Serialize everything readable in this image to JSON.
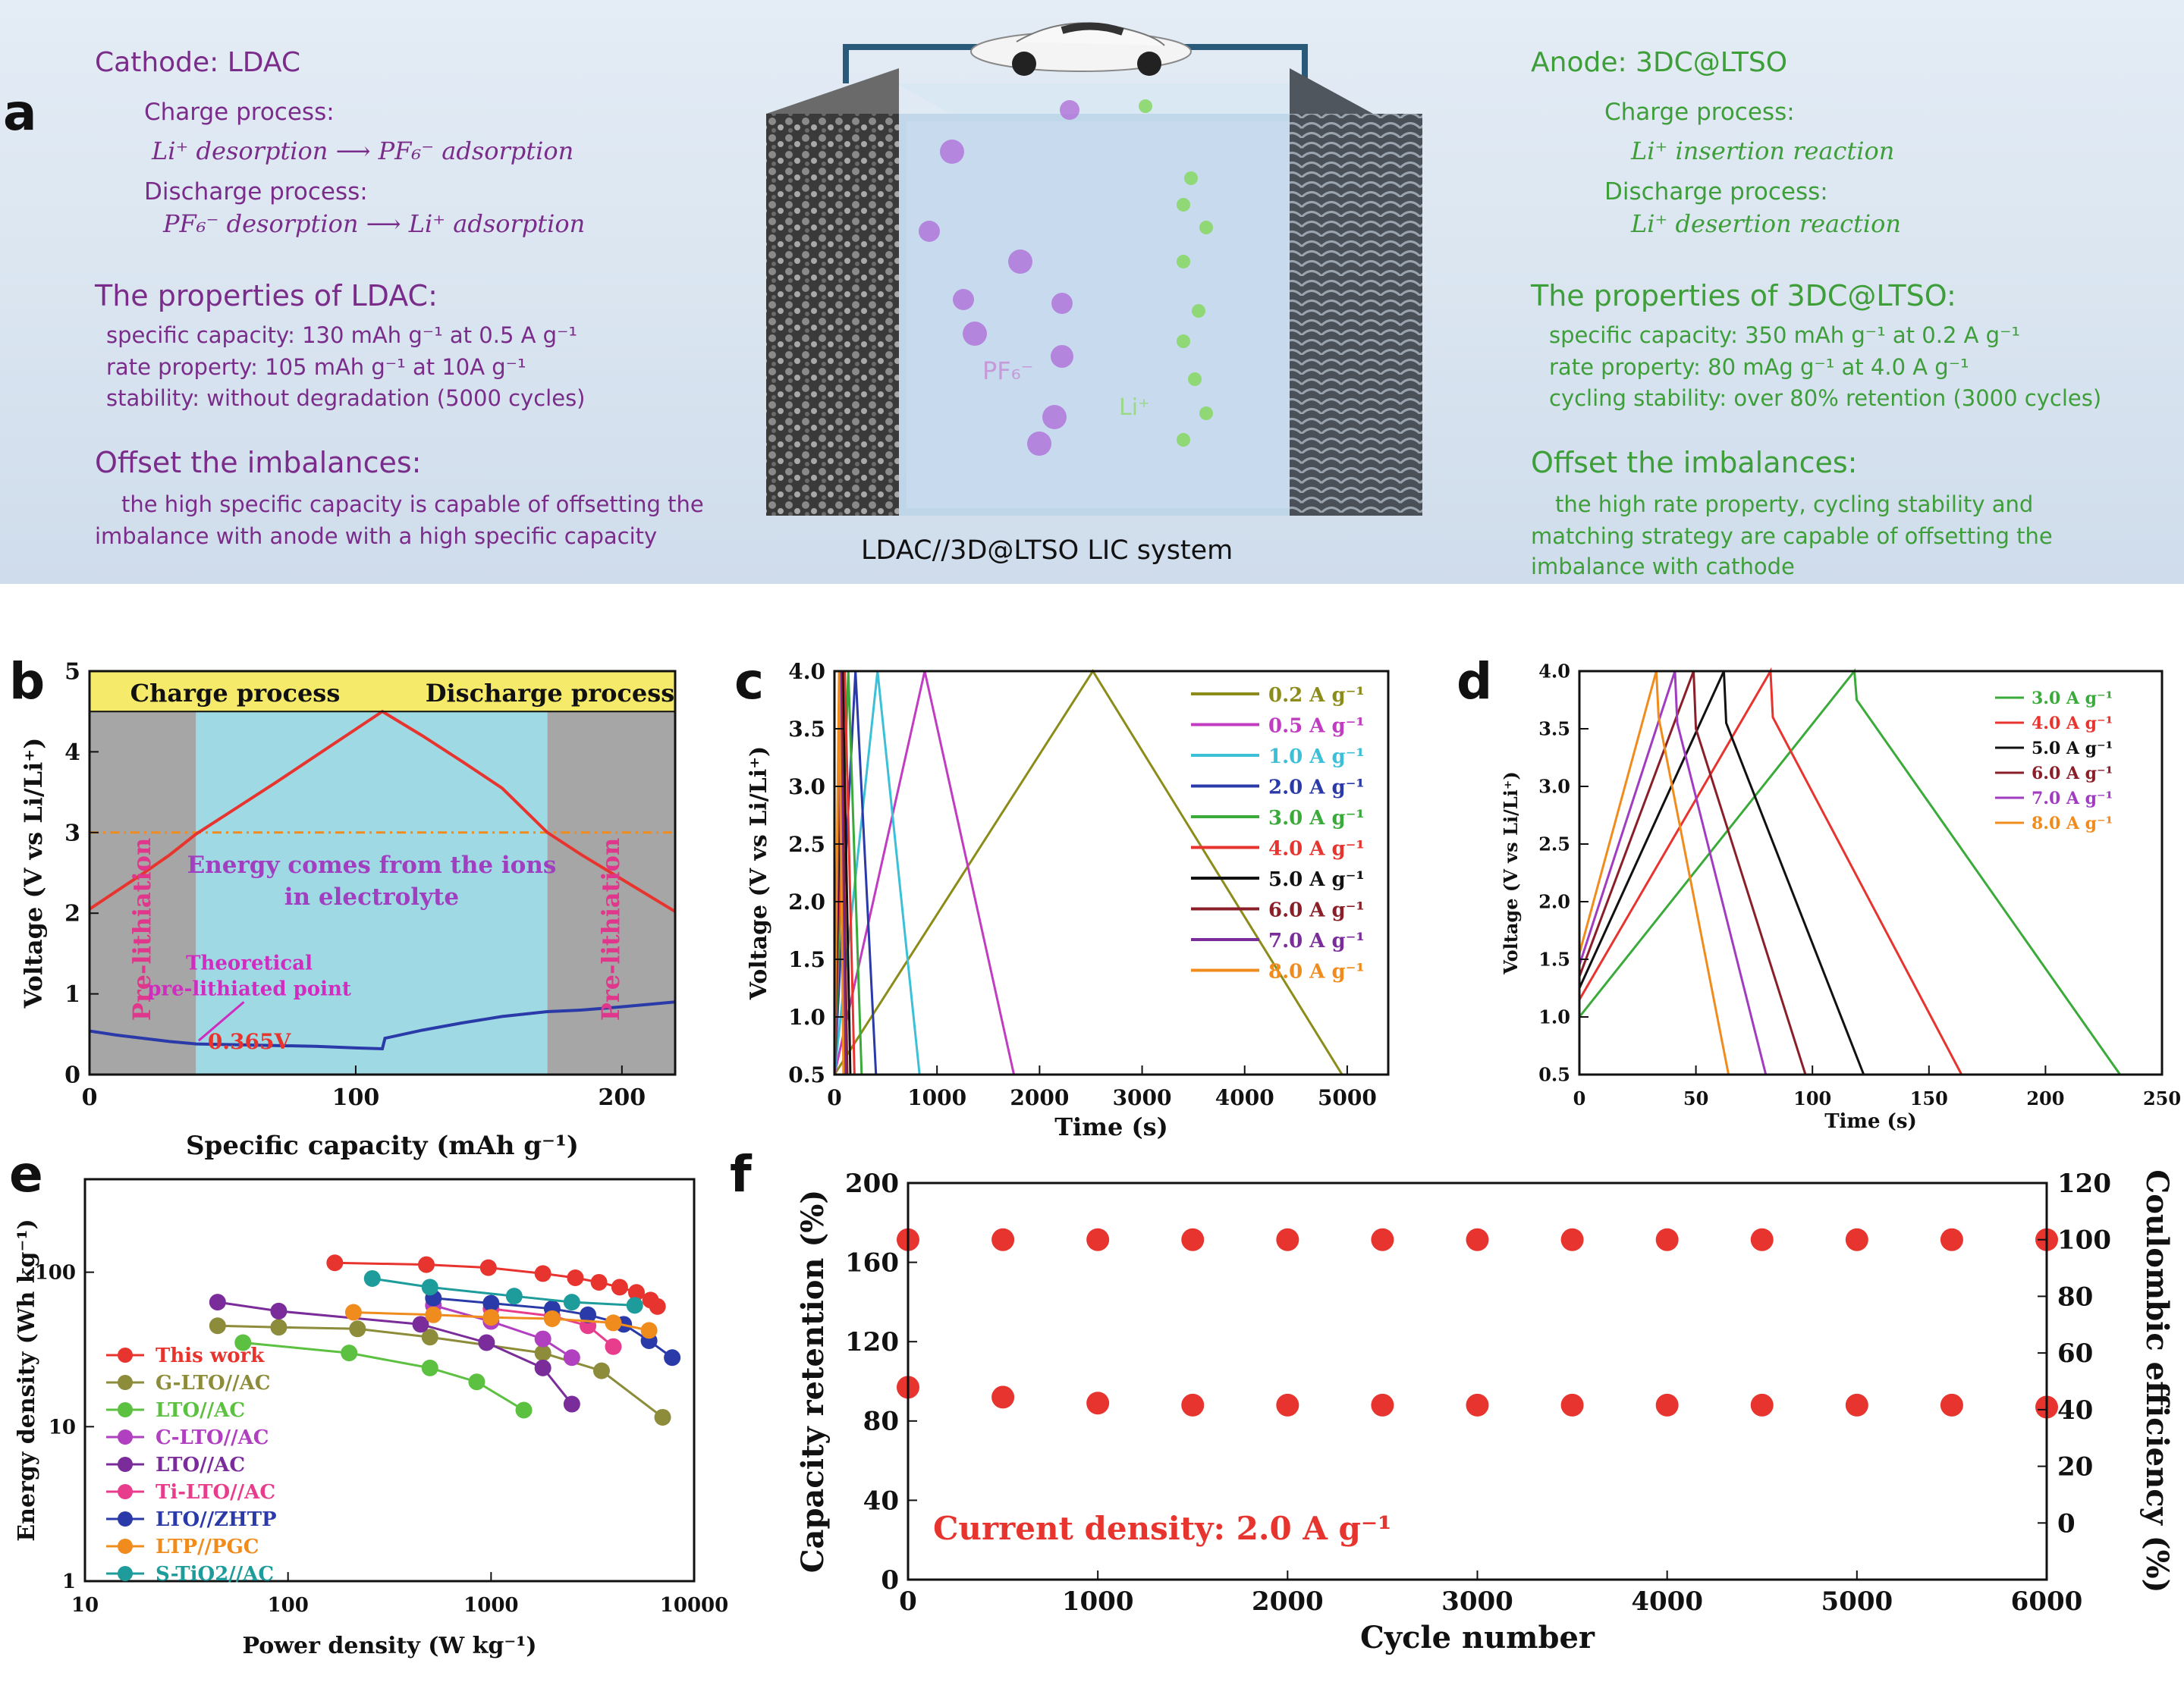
{
  "panel_labels": [
    "a",
    "b",
    "c",
    "d",
    "e",
    "f"
  ],
  "panel_a": {
    "cathode_title": "Cathode: LDAC",
    "cathode_charge": "Charge process:",
    "cathode_charge_reaction": "Li⁺ desorption ⟶ PF₆⁻ adsorption",
    "cathode_discharge": "Discharge process:",
    "cathode_discharge_reaction": "PF₆⁻ desorption ⟶ Li⁺ adsorption",
    "cathode_props_title": "The properties of LDAC:",
    "cathode_props": [
      "specific capacity: 130 mAh g⁻¹ at 0.5 A g⁻¹",
      "rate property: 105 mAh g⁻¹ at 10A g⁻¹",
      "stability: without degradation (5000 cycles)"
    ],
    "cathode_offset_title": "Offset the imbalances:",
    "cathode_offset": [
      "the high specific capacity is capable of offsetting the",
      "imbalance with anode with a high specific capacity"
    ],
    "anode_title": "Anode: 3DC@LTSO",
    "anode_charge": "Charge process:",
    "anode_charge_reaction": "Li⁺ insertion reaction",
    "anode_discharge": "Discharge process:",
    "anode_discharge_reaction": "Li⁺ desertion reaction",
    "anode_props_title": "The properties of 3DC@LTSO:",
    "anode_props": [
      "specific capacity: 350 mAh g⁻¹ at 0.2 A g⁻¹",
      "rate property: 80 mAg g⁻¹ at 4.0 A g⁻¹",
      "cycling stability: over 80% retention (3000 cycles)"
    ],
    "anode_offset_title": "Offset the imbalances:",
    "anode_offset": [
      "the high rate property, cycling stability and",
      "matching strategy are capable of offsetting the",
      "imbalance with cathode"
    ],
    "system_caption": "LDAC//3D@LTSO  LIC system",
    "ion_label_pf6": "PF₆⁻",
    "ion_label_li": "Li⁺",
    "colors": {
      "purple": "#7a2c8a",
      "green": "#3e9e3a"
    }
  },
  "chart_data": [
    {
      "panel": "b",
      "type": "line",
      "xlabel": "Specific capacity (mAh g⁻¹)",
      "ylabel": "Voltage (V vs Li/Li⁺)",
      "xlim": [
        0,
        220
      ],
      "ylim": [
        0,
        5
      ],
      "xticks": [
        0,
        100,
        200
      ],
      "yticks": [
        0,
        1,
        2,
        3,
        4,
        5
      ],
      "header_left": "Charge process",
      "header_right": "Discharge process",
      "region_labels": [
        "Pre-lithiation",
        "Pre-lithiation"
      ],
      "center_text": [
        "Energy comes from the ions",
        "in electrolyte"
      ],
      "annotation": [
        "Theoretical",
        "pre-lithiated point"
      ],
      "annotation_value": "0.365V",
      "regions": {
        "left_gray": [
          0,
          40
        ],
        "cyan": [
          40,
          172
        ],
        "right_gray": [
          172,
          220
        ]
      },
      "reference_line_y": 3.0,
      "series": [
        {
          "role": "cathode",
          "color": "#e8342e",
          "x": [
            0,
            10,
            20,
            30,
            40,
            55,
            70,
            85,
            100,
            110,
            125,
            140,
            155,
            172,
            185,
            200,
            220
          ],
          "y": [
            2.05,
            2.27,
            2.49,
            2.72,
            2.98,
            3.3,
            3.62,
            3.95,
            4.28,
            4.5,
            4.2,
            3.88,
            3.55,
            3.0,
            2.72,
            2.42,
            2.02
          ]
        },
        {
          "role": "anode",
          "color": "#2a3aa8",
          "x": [
            0,
            10,
            20,
            30,
            40,
            55,
            70,
            85,
            100,
            110,
            111,
            125,
            140,
            155,
            172,
            185,
            200,
            220
          ],
          "y": [
            0.54,
            0.49,
            0.45,
            0.41,
            0.38,
            0.37,
            0.36,
            0.35,
            0.33,
            0.32,
            0.45,
            0.55,
            0.64,
            0.72,
            0.78,
            0.8,
            0.84,
            0.9
          ]
        }
      ]
    },
    {
      "panel": "c",
      "type": "line",
      "xlabel": "Time (s)",
      "ylabel": "Voltage (V vs Li/Li⁺)",
      "xlim": [
        0,
        5400
      ],
      "ylim": [
        0.5,
        4.0
      ],
      "xticks": [
        0,
        1000,
        2000,
        3000,
        4000,
        5000
      ],
      "yticks": [
        0.5,
        1.0,
        1.5,
        2.0,
        2.5,
        3.0,
        3.5,
        4.0
      ],
      "series": [
        {
          "name": "0.2 A g⁻¹",
          "color": "#8c8c1a",
          "x": [
            0,
            2520,
            4950
          ],
          "y": [
            0.5,
            4.0,
            0.5
          ]
        },
        {
          "name": "0.5 A g⁻¹",
          "color": "#c03cc0",
          "x": [
            0,
            880,
            1750
          ],
          "y": [
            0.5,
            4.0,
            0.5
          ]
        },
        {
          "name": "1.0 A g⁻¹",
          "color": "#3cc0d8",
          "x": [
            0,
            420,
            830
          ],
          "y": [
            0.5,
            4.0,
            0.5
          ]
        },
        {
          "name": "2.0 A g⁻¹",
          "color": "#2a3aa8",
          "x": [
            0,
            205,
            405
          ],
          "y": [
            0.5,
            4.0,
            0.5
          ]
        },
        {
          "name": "3.0 A g⁻¹",
          "color": "#3aaa3a",
          "x": [
            0,
            135,
            265
          ],
          "y": [
            0.5,
            4.0,
            0.5
          ]
        },
        {
          "name": "4.0 A g⁻¹",
          "color": "#e8342e",
          "x": [
            0,
            100,
            195
          ],
          "y": [
            0.5,
            4.0,
            0.5
          ]
        },
        {
          "name": "5.0 A g⁻¹",
          "color": "#111111",
          "x": [
            0,
            80,
            155
          ],
          "y": [
            0.5,
            4.0,
            0.5
          ]
        },
        {
          "name": "6.0 A g⁻¹",
          "color": "#8a1f2a",
          "x": [
            0,
            65,
            125
          ],
          "y": [
            0.5,
            4.0,
            0.5
          ]
        },
        {
          "name": "7.0 A g⁻¹",
          "color": "#7a2c9a",
          "x": [
            0,
            55,
            105
          ],
          "y": [
            0.5,
            4.0,
            0.5
          ]
        },
        {
          "name": "8.0 A g⁻¹",
          "color": "#f08c1e",
          "x": [
            0,
            45,
            88
          ],
          "y": [
            0.5,
            4.0,
            0.5
          ]
        }
      ]
    },
    {
      "panel": "d",
      "type": "line",
      "xlabel": "Time (s)",
      "ylabel": "Voltage (V vs Li/Li⁺)",
      "xlim": [
        0,
        250
      ],
      "ylim": [
        0.5,
        4.0
      ],
      "xticks": [
        0,
        50,
        100,
        150,
        200,
        250
      ],
      "yticks": [
        0.5,
        1.0,
        1.5,
        2.0,
        2.5,
        3.0,
        3.5,
        4.0
      ],
      "series": [
        {
          "name": "3.0 A g⁻¹",
          "color": "#3aaa3a",
          "x": [
            0,
            118,
            119,
            232
          ],
          "y": [
            1.0,
            4.0,
            3.75,
            0.5
          ]
        },
        {
          "name": "4.0 A g⁻¹",
          "color": "#e8342e",
          "x": [
            0,
            82,
            83,
            164
          ],
          "y": [
            1.15,
            4.0,
            3.6,
            0.5
          ]
        },
        {
          "name": "5.0 A g⁻¹",
          "color": "#111111",
          "x": [
            0,
            62,
            63,
            122
          ],
          "y": [
            1.25,
            4.0,
            3.55,
            0.5
          ]
        },
        {
          "name": "6.0 A g⁻¹",
          "color": "#8a1f2a",
          "x": [
            0,
            49,
            50,
            97
          ],
          "y": [
            1.35,
            4.0,
            3.5,
            0.5
          ]
        },
        {
          "name": "7.0 A g⁻¹",
          "color": "#a03cc0",
          "x": [
            0,
            41,
            42,
            80
          ],
          "y": [
            1.45,
            4.0,
            3.55,
            0.5
          ]
        },
        {
          "name": "8.0 A g⁻¹",
          "color": "#f08c1e",
          "x": [
            0,
            33,
            34,
            64
          ],
          "y": [
            1.55,
            4.0,
            3.6,
            0.5
          ]
        }
      ]
    },
    {
      "panel": "e",
      "type": "scatter",
      "xlabel": "Power density (W kg⁻¹)",
      "ylabel": "Energy density (Wh kg⁻¹)",
      "xscale": "log",
      "yscale": "log",
      "xlim": [
        10,
        10000
      ],
      "ylim": [
        1,
        400
      ],
      "xticks": [
        10,
        100,
        1000,
        10000
      ],
      "yticks": [
        1,
        10,
        100
      ],
      "series": [
        {
          "name": "This work",
          "color": "#e8342e",
          "x": [
            170,
            480,
            970,
            1800,
            2600,
            3400,
            4300,
            5200,
            6100,
            6600
          ],
          "y": [
            115,
            112,
            107,
            98,
            92,
            86,
            80,
            74,
            66,
            60
          ]
        },
        {
          "name": "G-LTO//AC",
          "color": "#8c8c3a",
          "x": [
            45,
            90,
            220,
            500,
            1800,
            3500,
            7000
          ],
          "y": [
            45,
            44,
            43,
            38,
            30,
            23,
            11.5
          ]
        },
        {
          "name": "LTO//AC",
          "color": "#5cc040",
          "x": [
            60,
            200,
            500,
            850,
            1450
          ],
          "y": [
            35,
            30,
            24,
            19.5,
            12.8
          ]
        },
        {
          "name": "C-LTO//AC",
          "color": "#b040c0",
          "x": [
            520,
            1000,
            1800,
            2500
          ],
          "y": [
            61,
            48,
            37,
            28
          ]
        },
        {
          "name": "LTO//AC",
          "color": "#7a2c9a",
          "x": [
            45,
            90,
            450,
            950,
            1800,
            2500
          ],
          "y": [
            64,
            56,
            46,
            35,
            24,
            14
          ]
        },
        {
          "name": "Ti-LTO//AC",
          "color": "#e83c8c",
          "x": [
            1000,
            2000,
            3000,
            4000
          ],
          "y": [
            58,
            52,
            45,
            33
          ]
        },
        {
          "name": "LTO//ZHTP",
          "color": "#2a3aa8",
          "x": [
            520,
            1000,
            2000,
            3000,
            4500,
            6000,
            7800
          ],
          "y": [
            68,
            63,
            58,
            53,
            46,
            36,
            28
          ]
        },
        {
          "name": "LTP//PGC",
          "color": "#f08c1e",
          "x": [
            210,
            520,
            1000,
            2000,
            4000,
            6000
          ],
          "y": [
            55,
            53,
            51,
            50,
            47,
            42
          ]
        },
        {
          "name": "S-TiO2//AC",
          "color": "#1e9c9c",
          "x": [
            260,
            500,
            1300,
            2500,
            5100
          ],
          "y": [
            91,
            80,
            70,
            64,
            61
          ]
        }
      ]
    },
    {
      "panel": "f",
      "type": "scatter",
      "xlabel": "Cycle number",
      "ylabel": "Capacity retention (%)",
      "ylabel_right": "Coulombic efficiency (%)",
      "xlim": [
        0,
        6000
      ],
      "ylim": [
        0,
        200
      ],
      "ylim_right": [
        -20,
        120
      ],
      "xticks": [
        0,
        1000,
        2000,
        3000,
        4000,
        5000,
        6000
      ],
      "yticks": [
        0,
        40,
        80,
        120,
        160,
        200
      ],
      "yticks_right": [
        0,
        20,
        40,
        60,
        80,
        100,
        120
      ],
      "annotation": "Current density: 2.0 A g⁻¹",
      "color": "#e8342e",
      "series": [
        {
          "name": "Capacity retention",
          "axis": "left",
          "x": [
            0,
            500,
            1000,
            1500,
            2000,
            2500,
            3000,
            3500,
            4000,
            4500,
            5000,
            5500,
            6000
          ],
          "y": [
            97,
            92,
            89,
            88,
            88,
            88,
            88,
            88,
            88,
            88,
            88,
            88,
            87
          ]
        },
        {
          "name": "Coulombic efficiency",
          "axis": "right",
          "x": [
            0,
            500,
            1000,
            1500,
            2000,
            2500,
            3000,
            3500,
            4000,
            4500,
            5000,
            5500,
            6000
          ],
          "y": [
            100,
            100,
            100,
            100,
            100,
            100,
            100,
            100,
            100,
            100,
            100,
            100,
            100
          ]
        }
      ]
    }
  ]
}
